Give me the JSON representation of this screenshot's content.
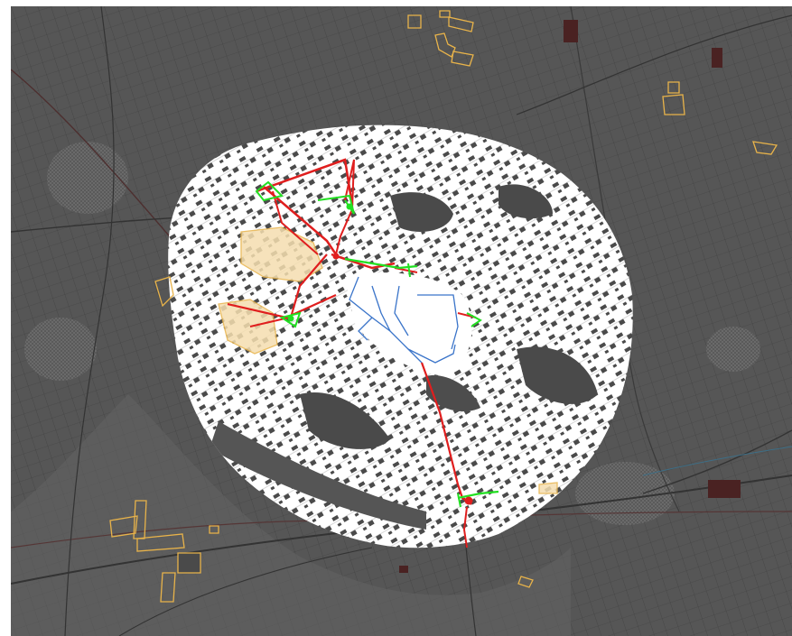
{
  "map": {
    "colors": {
      "background": "#565656",
      "background_dark": "#474747",
      "grid_line": "#2f2f2f",
      "road_major": "#2a2a2a",
      "road_red": "#5a3434",
      "town_cluster": "#6a6a6a",
      "grey_zone": "#707070",
      "analysis_fill": "#ffffff",
      "analysis_hole": "#4a4a4a",
      "protected_outline": "#e8b34a",
      "protected_fill": "#f5deb0",
      "dark_red_parcel": "#4a2222",
      "network_red": "#e01e1e",
      "network_green": "#22e022",
      "network_blue": "#3a74c9",
      "river": "#3d6e86"
    },
    "layers": [
      "base-terrain",
      "field-grid",
      "roads",
      "settlements",
      "analysis-zone",
      "protected-areas",
      "transmission-network",
      "pipeline-network"
    ]
  }
}
